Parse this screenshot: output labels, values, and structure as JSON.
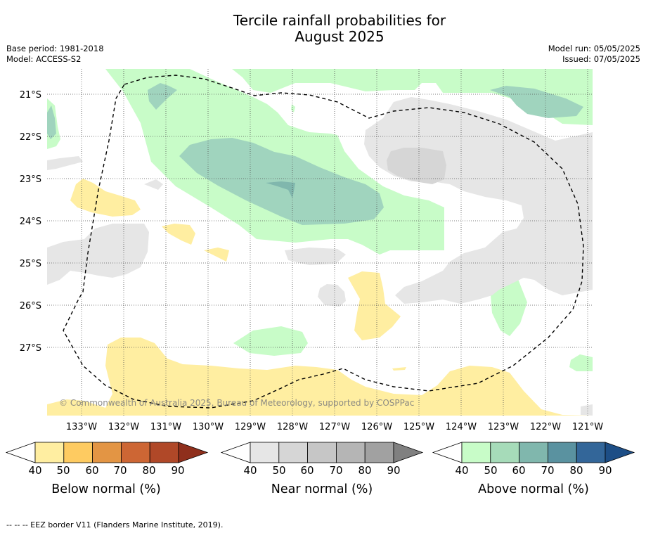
{
  "title_line1": "Tercile rainfall probabilities for",
  "title_line2": "August 2025",
  "base_period": "Base period: 1981-2018",
  "model": "Model: ACCESS-S2",
  "model_run": "Model run: 05/05/2025",
  "issued": "Issued: 07/05/2025",
  "copyright": "© Commonwealth of Australia 2025, Bureau of Meteorology, supported by COSPPac",
  "lat_labels": [
    "21°S",
    "22°S",
    "23°S",
    "24°S",
    "25°S",
    "26°S",
    "27°S"
  ],
  "lon_labels": [
    "133°W",
    "132°W",
    "131°W",
    "130°W",
    "129°W",
    "128°W",
    "127°W",
    "126°W",
    "125°W",
    "124°W",
    "123°W",
    "122°W",
    "121°W"
  ],
  "colorbars": {
    "below": {
      "title": "Below normal (%)",
      "ticks": [
        "40",
        "50",
        "60",
        "70",
        "80",
        "90"
      ],
      "colors": [
        "#ffeea1",
        "#fecb61",
        "#e39544",
        "#cd6634",
        "#b04828",
        "#8f2f1c"
      ]
    },
    "near": {
      "title": "Near normal (%)",
      "ticks": [
        "40",
        "50",
        "60",
        "70",
        "80",
        "90"
      ],
      "colors": [
        "#e6e6e6",
        "#d6d6d6",
        "#c6c6c6",
        "#b5b5b5",
        "#a1a1a1",
        "#808080"
      ]
    },
    "above": {
      "title": "Above normal (%)",
      "ticks": [
        "40",
        "50",
        "60",
        "70",
        "80",
        "90"
      ],
      "colors": [
        "#c8fcc8",
        "#a6dbb9",
        "#80b7ad",
        "#5a92a0",
        "#336699",
        "#1d4e86"
      ]
    }
  },
  "footnote": "--  --  -- EEZ border V11 (Flanders Marine Institute, 2019)."
}
